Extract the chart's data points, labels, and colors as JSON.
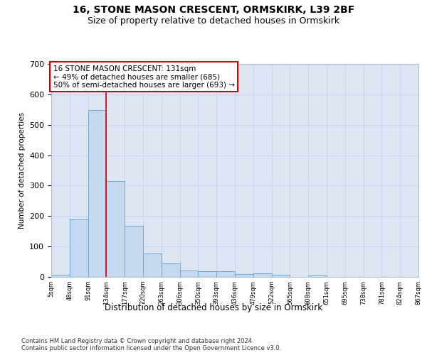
{
  "title1": "16, STONE MASON CRESCENT, ORMSKIRK, L39 2BF",
  "title2": "Size of property relative to detached houses in Ormskirk",
  "xlabel": "Distribution of detached houses by size in Ormskirk",
  "ylabel": "Number of detached properties",
  "footnote": "Contains HM Land Registry data © Crown copyright and database right 2024.\nContains public sector information licensed under the Open Government Licence v3.0.",
  "annotation_line1": "16 STONE MASON CRESCENT: 131sqm",
  "annotation_line2": "← 49% of detached houses are smaller (685)",
  "annotation_line3": "50% of semi-detached houses are larger (693) →",
  "bar_values": [
    8,
    188,
    548,
    314,
    168,
    77,
    45,
    20,
    19,
    18,
    10,
    11,
    7,
    0,
    5,
    0,
    0,
    0,
    0,
    0
  ],
  "bar_color": "#c5d8f0",
  "bar_edge_color": "#6aaad4",
  "x_labels": [
    "5sqm",
    "48sqm",
    "91sqm",
    "134sqm",
    "177sqm",
    "220sqm",
    "263sqm",
    "306sqm",
    "350sqm",
    "393sqm",
    "436sqm",
    "479sqm",
    "522sqm",
    "565sqm",
    "608sqm",
    "651sqm",
    "695sqm",
    "738sqm",
    "781sqm",
    "824sqm",
    "867sqm"
  ],
  "vline_x": 2.5,
  "vline_color": "#cc0000",
  "ylim": [
    0,
    700
  ],
  "yticks": [
    0,
    100,
    200,
    300,
    400,
    500,
    600,
    700
  ],
  "grid_color": "#c8d4e8",
  "bg_color": "#dde5f3",
  "annotation_box_facecolor": "#ffffff",
  "annotation_box_edgecolor": "#cc0000",
  "title1_fontsize": 10,
  "title2_fontsize": 9,
  "footnote_fontsize": 6
}
